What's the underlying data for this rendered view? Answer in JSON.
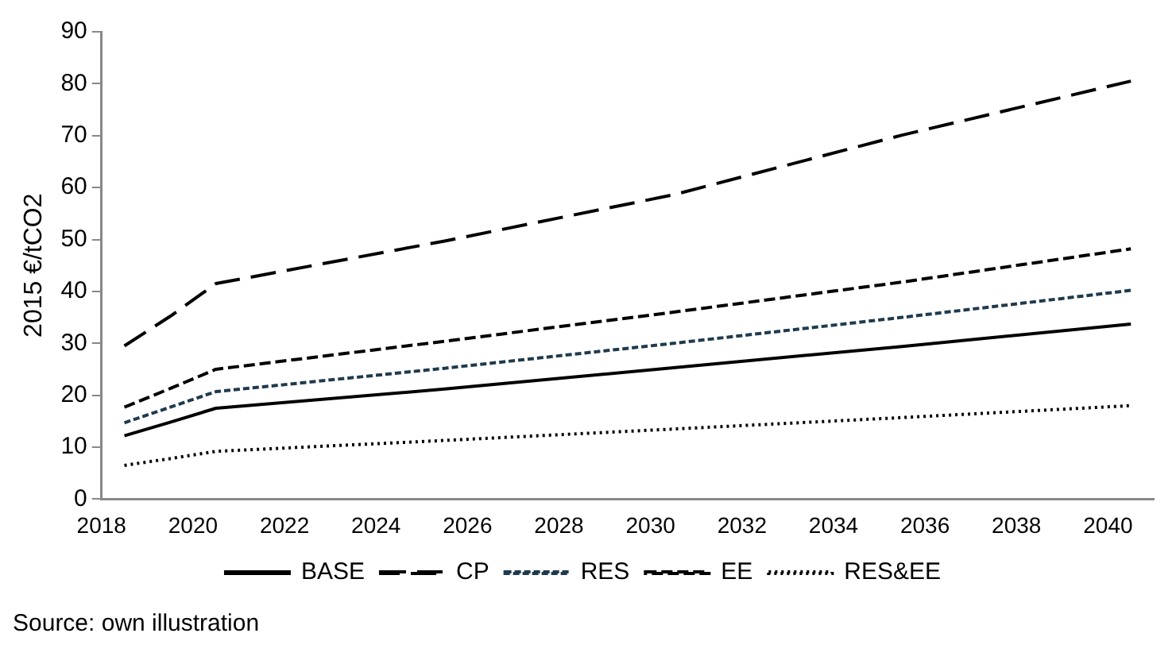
{
  "chart_data": {
    "type": "line",
    "ylabel": "2015 €/tCO2",
    "x": [
      2018.5,
      2019.5,
      2020.5,
      2025.5,
      2030.5,
      2035.5,
      2040.5
    ],
    "xlim": [
      2018,
      2041
    ],
    "xticks": [
      2018,
      2020,
      2022,
      2024,
      2026,
      2028,
      2030,
      2032,
      2034,
      2036,
      2038,
      2040
    ],
    "ylim": [
      0,
      90
    ],
    "yticks": [
      0,
      10,
      20,
      30,
      40,
      50,
      60,
      70,
      80,
      90
    ],
    "grid": false,
    "legend": "bottom",
    "marker": "none",
    "series": [
      {
        "name": "BASE",
        "color": "#000000",
        "line_style": "solid",
        "values": [
          12.2,
          14.8,
          17.5,
          21.2,
          25.3,
          29.4,
          33.7
        ]
      },
      {
        "name": "CP",
        "color": "#000000",
        "line_style": "dashed",
        "values": [
          29.5,
          35.2,
          41.5,
          49.7,
          58.6,
          70.1,
          80.5
        ]
      },
      {
        "name": "RES",
        "color": "#1f3a4d",
        "line_style": "dashed",
        "values": [
          14.7,
          17.7,
          20.7,
          25.2,
          30,
          35,
          40.2
        ]
      },
      {
        "name": "EE",
        "color": "#000000",
        "line_style": "dashed",
        "values": [
          17.7,
          21.3,
          25,
          30.4,
          36,
          41.8,
          48.2
        ]
      },
      {
        "name": "RES&EE",
        "color": "#000000",
        "line_style": "dotted",
        "values": [
          6.5,
          7.8,
          9.2,
          11.3,
          13.5,
          15.7,
          18
        ]
      }
    ],
    "annotations": [
      "Source: own illustration"
    ]
  }
}
